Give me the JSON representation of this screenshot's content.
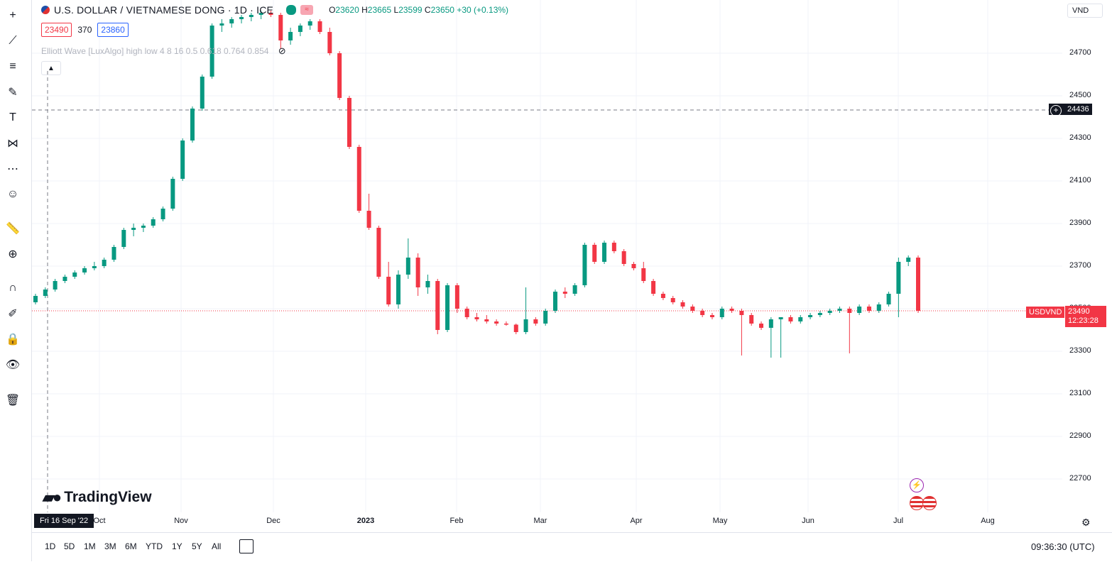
{
  "header": {
    "title": "U.S. DOLLAR / VIETNAMESE DONG · 1D · ICE",
    "ohlc": {
      "o_label": "O",
      "o": "23620",
      "h_label": "H",
      "h": "23665",
      "l_label": "L",
      "l": "23599",
      "c_label": "C",
      "c": "23650",
      "change": "+30 (+0.13%)"
    },
    "bid": "23490",
    "spread": "370",
    "ask": "23860",
    "indicator": "Elliott Wave [LuxAlgo] high low 4 8 16 0.5 0.618 0.764 0.854",
    "currency": "VND"
  },
  "crosshair": {
    "price": "24436",
    "date": "Fri 16 Sep '22"
  },
  "last_price": {
    "symbol": "USDVND",
    "price": "23490",
    "countdown": "12:23:28"
  },
  "watermark": "TradingView",
  "bottom_bar": {
    "ranges": [
      "1D",
      "5D",
      "1M",
      "3M",
      "6M",
      "YTD",
      "1Y",
      "5Y",
      "All"
    ],
    "time": "09:36:30 (UTC)"
  },
  "colors": {
    "up": "#089981",
    "down": "#f23645",
    "grid": "#f0f3fa"
  },
  "icons": [
    "crosshair-icon",
    "trend-line-icon",
    "fib-icon",
    "brush-icon",
    "text-icon",
    "pattern-icon",
    "forecast-icon",
    "emoji-icon",
    "ruler-icon",
    "zoom-icon",
    "magnet-icon",
    "lock-draw-icon",
    "lock-icon",
    "eye-icon",
    "trash-icon"
  ],
  "chart_data": {
    "type": "candlestick",
    "ylim": [
      22500,
      24900
    ],
    "yticks": [
      "24700",
      "24500",
      "24300",
      "24100",
      "23900",
      "23700",
      "23500",
      "23300",
      "23100",
      "22900",
      "22700"
    ],
    "xticks": [
      "Oct",
      "Nov",
      "Dec",
      "2023",
      "Feb",
      "Mar",
      "Apr",
      "May",
      "Jun",
      "Jul",
      "Aug"
    ],
    "candles": [
      [
        23530,
        23570,
        23520,
        23560
      ],
      [
        23560,
        23600,
        23550,
        23590
      ],
      [
        23590,
        23640,
        23580,
        23630
      ],
      [
        23630,
        23660,
        23620,
        23650
      ],
      [
        23650,
        23680,
        23640,
        23670
      ],
      [
        23670,
        23700,
        23660,
        23690
      ],
      [
        23690,
        23720,
        23680,
        23700
      ],
      [
        23700,
        23740,
        23690,
        23730
      ],
      [
        23730,
        23800,
        23720,
        23790
      ],
      [
        23790,
        23880,
        23780,
        23870
      ],
      [
        23870,
        23900,
        23840,
        23880
      ],
      [
        23880,
        23900,
        23860,
        23890
      ],
      [
        23890,
        23930,
        23880,
        23920
      ],
      [
        23920,
        23980,
        23910,
        23970
      ],
      [
        23970,
        24120,
        23960,
        24110
      ],
      [
        24110,
        24300,
        24100,
        24290
      ],
      [
        24290,
        24450,
        24280,
        24440
      ],
      [
        24440,
        24600,
        24430,
        24590
      ],
      [
        24590,
        24840,
        24580,
        24830
      ],
      [
        24830,
        24860,
        24800,
        24840
      ],
      [
        24840,
        24870,
        24820,
        24860
      ],
      [
        24860,
        24880,
        24840,
        24870
      ],
      [
        24870,
        24890,
        24850,
        24880
      ],
      [
        24880,
        24900,
        24860,
        24890
      ],
      [
        24890,
        24900,
        24870,
        24880
      ],
      [
        24880,
        24890,
        24720,
        24760
      ],
      [
        24760,
        24820,
        24740,
        24800
      ],
      [
        24800,
        24840,
        24780,
        24830
      ],
      [
        24830,
        24860,
        24810,
        24850
      ],
      [
        24850,
        24860,
        24790,
        24800
      ],
      [
        24800,
        24820,
        24690,
        24700
      ],
      [
        24700,
        24710,
        24480,
        24490
      ],
      [
        24490,
        24500,
        24250,
        24260
      ],
      [
        24260,
        24270,
        23950,
        23960
      ],
      [
        23960,
        24040,
        23870,
        23880
      ],
      [
        23880,
        23890,
        23640,
        23650
      ],
      [
        23650,
        23720,
        23510,
        23520
      ],
      [
        23520,
        23680,
        23500,
        23660
      ],
      [
        23660,
        23830,
        23640,
        23740
      ],
      [
        23740,
        23760,
        23560,
        23600
      ],
      [
        23600,
        23660,
        23570,
        23630
      ],
      [
        23630,
        23640,
        23380,
        23400
      ],
      [
        23400,
        23620,
        23390,
        23610
      ],
      [
        23610,
        23620,
        23480,
        23500
      ],
      [
        23500,
        23510,
        23450,
        23460
      ],
      [
        23460,
        23480,
        23440,
        23450
      ],
      [
        23450,
        23470,
        23430,
        23440
      ],
      [
        23440,
        23450,
        23420,
        23430
      ],
      [
        23430,
        23440,
        23420,
        23425
      ],
      [
        23425,
        23430,
        23380,
        23390
      ],
      [
        23390,
        23600,
        23380,
        23450
      ],
      [
        23450,
        23460,
        23420,
        23430
      ],
      [
        23430,
        23500,
        23420,
        23490
      ],
      [
        23490,
        23590,
        23480,
        23580
      ],
      [
        23580,
        23600,
        23550,
        23570
      ],
      [
        23570,
        23620,
        23560,
        23610
      ],
      [
        23610,
        23810,
        23600,
        23800
      ],
      [
        23800,
        23810,
        23710,
        23720
      ],
      [
        23720,
        23820,
        23710,
        23810
      ],
      [
        23810,
        23820,
        23760,
        23770
      ],
      [
        23770,
        23780,
        23700,
        23710
      ],
      [
        23710,
        23720,
        23680,
        23690
      ],
      [
        23690,
        23720,
        23620,
        23630
      ],
      [
        23630,
        23640,
        23560,
        23570
      ],
      [
        23570,
        23580,
        23540,
        23550
      ],
      [
        23550,
        23560,
        23520,
        23530
      ],
      [
        23530,
        23540,
        23500,
        23510
      ],
      [
        23510,
        23520,
        23480,
        23490
      ],
      [
        23490,
        23500,
        23460,
        23470
      ],
      [
        23470,
        23480,
        23450,
        23460
      ],
      [
        23460,
        23510,
        23450,
        23500
      ],
      [
        23500,
        23510,
        23480,
        23490
      ],
      [
        23490,
        23500,
        23280,
        23470
      ],
      [
        23470,
        23480,
        23420,
        23430
      ],
      [
        23430,
        23440,
        23400,
        23410
      ],
      [
        23410,
        23460,
        23270,
        23450
      ],
      [
        23450,
        23460,
        23270,
        23460
      ],
      [
        23460,
        23470,
        23430,
        23440
      ],
      [
        23440,
        23470,
        23430,
        23460
      ],
      [
        23460,
        23480,
        23450,
        23470
      ],
      [
        23470,
        23490,
        23460,
        23480
      ],
      [
        23480,
        23500,
        23470,
        23490
      ],
      [
        23490,
        23510,
        23480,
        23500
      ],
      [
        23500,
        23510,
        23290,
        23480
      ],
      [
        23480,
        23520,
        23470,
        23510
      ],
      [
        23510,
        23520,
        23480,
        23490
      ],
      [
        23490,
        23530,
        23480,
        23520
      ],
      [
        23520,
        23580,
        23510,
        23570
      ],
      [
        23570,
        23740,
        23460,
        23720
      ],
      [
        23720,
        23750,
        23700,
        23740
      ],
      [
        23740,
        23750,
        23480,
        23490
      ]
    ]
  }
}
